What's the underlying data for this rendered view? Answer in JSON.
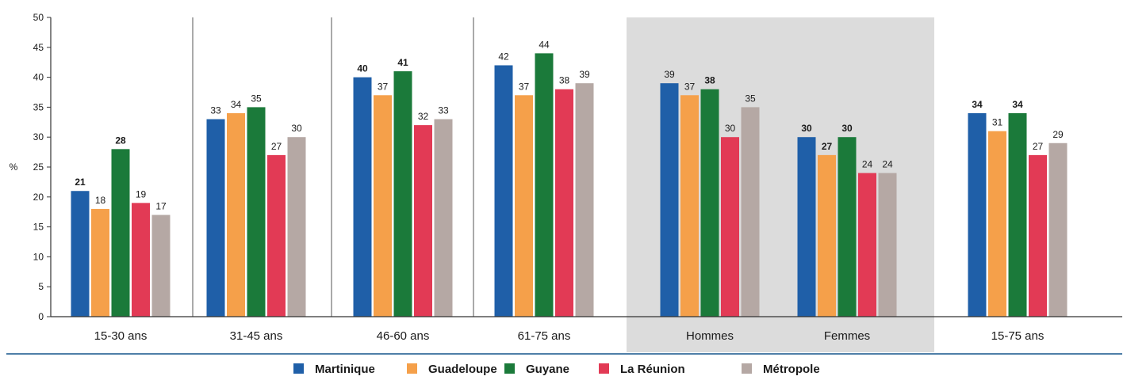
{
  "chart_data": {
    "type": "bar",
    "ylabel": "%",
    "ylim": [
      0,
      50
    ],
    "yticks": [
      0,
      5,
      10,
      15,
      20,
      25,
      30,
      35,
      40,
      45,
      50
    ],
    "categories": [
      "15-30 ans",
      "31-45 ans",
      "46-60 ans",
      "61-75 ans",
      "Hommes",
      "Femmes",
      "15-75 ans"
    ],
    "highlighted_categories": [
      "Hommes",
      "Femmes"
    ],
    "series": [
      {
        "name": "Martinique",
        "color": "#1f5fa8",
        "values": [
          21,
          33,
          40,
          42,
          39,
          30,
          34
        ],
        "bold_labels": [
          true,
          false,
          true,
          false,
          false,
          true,
          true
        ]
      },
      {
        "name": "Guadeloupe",
        "color": "#f5a04a",
        "values": [
          18,
          34,
          37,
          37,
          37,
          27,
          31
        ],
        "bold_labels": [
          false,
          false,
          false,
          false,
          false,
          true,
          false
        ]
      },
      {
        "name": "Guyane",
        "color": "#1b7a3a",
        "values": [
          28,
          35,
          41,
          44,
          38,
          30,
          34
        ],
        "bold_labels": [
          true,
          false,
          true,
          false,
          true,
          true,
          true
        ]
      },
      {
        "name": "La Réunion",
        "color": "#e23a55",
        "values": [
          19,
          27,
          32,
          38,
          30,
          24,
          27
        ],
        "bold_labels": [
          false,
          false,
          false,
          false,
          false,
          false,
          false
        ]
      },
      {
        "name": "Métropole",
        "color": "#b5a8a4",
        "values": [
          17,
          30,
          33,
          39,
          35,
          24,
          29
        ],
        "bold_labels": [
          false,
          false,
          false,
          false,
          false,
          false,
          false
        ]
      }
    ],
    "legend_position": "bottom",
    "grid": false
  }
}
